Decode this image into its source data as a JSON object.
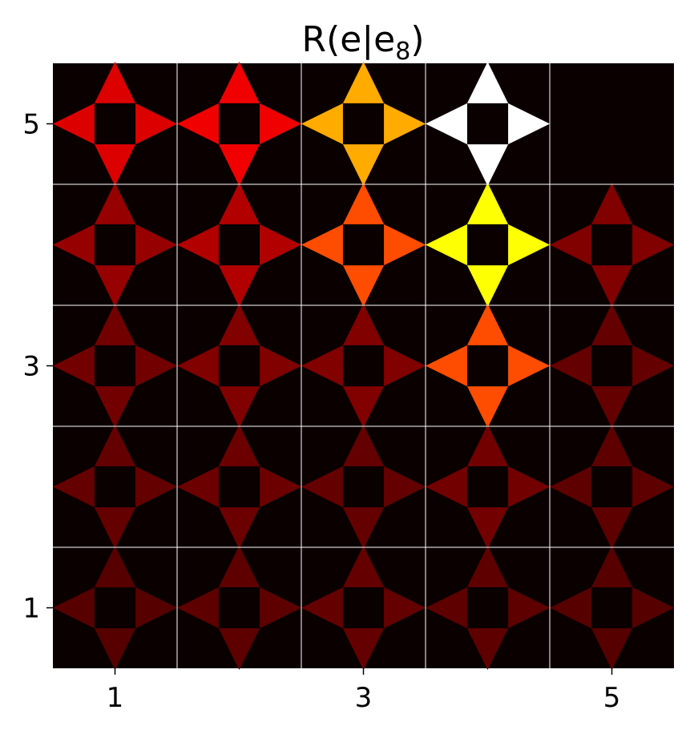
{
  "chart_data": {
    "type": "heatmap",
    "subtype": "gridworld-action-values",
    "title": {
      "base": "R(e|e",
      "subscript": "8",
      "close": ")"
    },
    "grid_size": 5,
    "x_ticks": [
      "1",
      "3",
      "5"
    ],
    "y_ticks": [
      "5",
      "3",
      "1"
    ],
    "xlim": [
      0.5,
      5.5
    ],
    "ylim": [
      0.5,
      5.5
    ],
    "colormap": "hot",
    "value_range": [
      0,
      1
    ],
    "background_color": "#0b0000",
    "grid_color": "#ffffff",
    "missing_cells": [
      {
        "x": 5,
        "y": 5
      }
    ],
    "cells": [
      {
        "x": 1,
        "y": 5,
        "up": 0.3,
        "down": 0.3,
        "left": 0.3,
        "right": 0.3
      },
      {
        "x": 2,
        "y": 5,
        "up": 0.33,
        "down": 0.33,
        "left": 0.33,
        "right": 0.33
      },
      {
        "x": 3,
        "y": 5,
        "up": 0.62,
        "down": 0.62,
        "left": 0.62,
        "right": 0.62
      },
      {
        "x": 4,
        "y": 5,
        "up": 1.0,
        "down": 1.0,
        "left": 1.0,
        "right": 1.0
      },
      {
        "x": 1,
        "y": 4,
        "up": 0.2,
        "down": 0.2,
        "left": 0.2,
        "right": 0.2
      },
      {
        "x": 2,
        "y": 4,
        "up": 0.24,
        "down": 0.24,
        "left": 0.24,
        "right": 0.24
      },
      {
        "x": 3,
        "y": 4,
        "up": 0.48,
        "down": 0.48,
        "left": 0.48,
        "right": 0.48
      },
      {
        "x": 4,
        "y": 4,
        "up": 0.75,
        "down": 0.75,
        "left": 0.75,
        "right": 0.75
      },
      {
        "x": 5,
        "y": 4,
        "up": 0.17,
        "down": 0.17,
        "left": 0.17,
        "right": 0.17
      },
      {
        "x": 1,
        "y": 3,
        "up": 0.15,
        "down": 0.15,
        "left": 0.15,
        "right": 0.15
      },
      {
        "x": 2,
        "y": 3,
        "up": 0.17,
        "down": 0.17,
        "left": 0.17,
        "right": 0.17
      },
      {
        "x": 3,
        "y": 3,
        "up": 0.17,
        "down": 0.17,
        "left": 0.17,
        "right": 0.17
      },
      {
        "x": 4,
        "y": 3,
        "up": 0.48,
        "down": 0.48,
        "left": 0.48,
        "right": 0.48
      },
      {
        "x": 5,
        "y": 3,
        "up": 0.13,
        "down": 0.13,
        "left": 0.13,
        "right": 0.13
      },
      {
        "x": 1,
        "y": 2,
        "up": 0.13,
        "down": 0.13,
        "left": 0.13,
        "right": 0.13
      },
      {
        "x": 2,
        "y": 2,
        "up": 0.14,
        "down": 0.14,
        "left": 0.14,
        "right": 0.14
      },
      {
        "x": 3,
        "y": 2,
        "up": 0.13,
        "down": 0.13,
        "left": 0.13,
        "right": 0.13
      },
      {
        "x": 4,
        "y": 2,
        "up": 0.15,
        "down": 0.15,
        "left": 0.15,
        "right": 0.15
      },
      {
        "x": 5,
        "y": 2,
        "up": 0.12,
        "down": 0.12,
        "left": 0.12,
        "right": 0.12
      },
      {
        "x": 1,
        "y": 1,
        "up": 0.11,
        "down": 0.11,
        "left": 0.11,
        "right": 0.11
      },
      {
        "x": 2,
        "y": 1,
        "up": 0.12,
        "down": 0.12,
        "left": 0.12,
        "right": 0.12
      },
      {
        "x": 3,
        "y": 1,
        "up": 0.13,
        "down": 0.13,
        "left": 0.13,
        "right": 0.13
      },
      {
        "x": 4,
        "y": 1,
        "up": 0.12,
        "down": 0.12,
        "left": 0.12,
        "right": 0.12
      },
      {
        "x": 5,
        "y": 1,
        "up": 0.11,
        "down": 0.11,
        "left": 0.11,
        "right": 0.11
      }
    ]
  }
}
